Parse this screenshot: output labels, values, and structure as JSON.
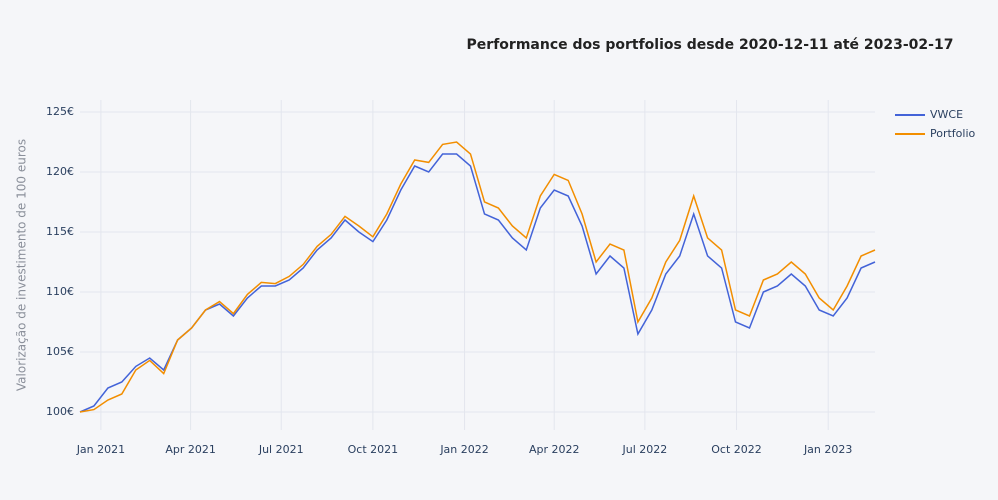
{
  "chart_data": {
    "type": "line",
    "title": "Performance dos portfolios desde 2020-12-11 até 2023-02-17",
    "y_label": "Valorização de investimento de 100 euros",
    "x": [
      "2020-12-11",
      "2020-12-25",
      "2021-01-08",
      "2021-01-22",
      "2021-02-05",
      "2021-02-19",
      "2021-03-05",
      "2021-03-19",
      "2021-04-02",
      "2021-04-16",
      "2021-04-30",
      "2021-05-14",
      "2021-05-28",
      "2021-06-11",
      "2021-06-25",
      "2021-07-09",
      "2021-07-23",
      "2021-08-06",
      "2021-08-20",
      "2021-09-03",
      "2021-09-17",
      "2021-10-01",
      "2021-10-15",
      "2021-10-29",
      "2021-11-12",
      "2021-11-26",
      "2021-12-10",
      "2021-12-24",
      "2022-01-07",
      "2022-01-21",
      "2022-02-04",
      "2022-02-18",
      "2022-03-04",
      "2022-03-18",
      "2022-04-01",
      "2022-04-15",
      "2022-04-29",
      "2022-05-13",
      "2022-05-27",
      "2022-06-10",
      "2022-06-24",
      "2022-07-08",
      "2022-07-22",
      "2022-08-05",
      "2022-08-19",
      "2022-09-02",
      "2022-09-16",
      "2022-09-30",
      "2022-10-14",
      "2022-10-28",
      "2022-11-11",
      "2022-11-25",
      "2022-12-09",
      "2022-12-23",
      "2023-01-06",
      "2023-01-20",
      "2023-02-03",
      "2023-02-17"
    ],
    "series": [
      {
        "name": "VWCE",
        "color": "#4363d8",
        "values": [
          100,
          100.5,
          102,
          102.5,
          103.8,
          104.5,
          103.5,
          106,
          107,
          108.5,
          109,
          108,
          109.5,
          110.5,
          110.5,
          111,
          112,
          113.5,
          114.5,
          116,
          115,
          114.2,
          116,
          118.5,
          120.5,
          120,
          121.5,
          121.5,
          120.5,
          116.5,
          116,
          114.5,
          113.5,
          117,
          118.5,
          118,
          115.5,
          111.5,
          113,
          112,
          106.5,
          108.5,
          111.5,
          113,
          116.5,
          113,
          112,
          107.5,
          107,
          110,
          110.5,
          111.5,
          110.5,
          108.5,
          108,
          109.5,
          112,
          112.5
        ]
      },
      {
        "name": "Portfolio",
        "color": "#f28e00",
        "values": [
          100,
          100.2,
          101,
          101.5,
          103.5,
          104.3,
          103.2,
          106,
          107,
          108.5,
          109.2,
          108.2,
          109.8,
          110.8,
          110.7,
          111.3,
          112.3,
          113.8,
          114.8,
          116.3,
          115.5,
          114.6,
          116.5,
          119,
          121,
          120.8,
          122.3,
          122.5,
          121.5,
          117.5,
          117,
          115.5,
          114.5,
          118,
          119.8,
          119.3,
          116.5,
          112.5,
          114,
          113.5,
          107.5,
          109.5,
          112.5,
          114.3,
          118,
          114.5,
          113.5,
          108.5,
          108,
          111,
          111.5,
          112.5,
          111.5,
          109.5,
          108.5,
          110.5,
          113,
          113.5
        ]
      }
    ],
    "xlim": [
      "2020-12-11",
      "2023-02-17"
    ],
    "xticks": [
      {
        "value": "2021-01-01",
        "label": "Jan 2021"
      },
      {
        "value": "2021-04-01",
        "label": "Apr 2021"
      },
      {
        "value": "2021-07-01",
        "label": "Jul 2021"
      },
      {
        "value": "2021-10-01",
        "label": "Oct 2021"
      },
      {
        "value": "2022-01-01",
        "label": "Jan 2022"
      },
      {
        "value": "2022-04-01",
        "label": "Apr 2022"
      },
      {
        "value": "2022-07-01",
        "label": "Jul 2022"
      },
      {
        "value": "2022-10-01",
        "label": "Oct 2022"
      },
      {
        "value": "2023-01-01",
        "label": "Jan 2023"
      }
    ],
    "ylim": [
      98.5,
      126
    ],
    "yticks": [
      {
        "value": 100,
        "label": "100€"
      },
      {
        "value": 105,
        "label": "105€"
      },
      {
        "value": 110,
        "label": "110€"
      },
      {
        "value": 115,
        "label": "115€"
      },
      {
        "value": 120,
        "label": "120€"
      },
      {
        "value": 125,
        "label": "125€"
      }
    ],
    "grid": true,
    "legend": "top-right"
  }
}
